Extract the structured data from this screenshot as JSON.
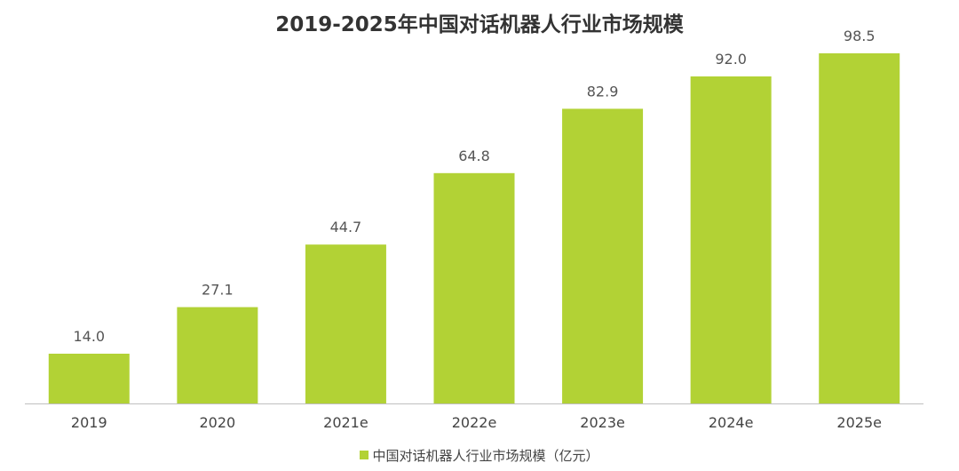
{
  "chart_data": {
    "type": "bar",
    "title": "2019-2025年中国对话机器人行业市场规模",
    "categories": [
      "2019",
      "2020",
      "2021e",
      "2022e",
      "2023e",
      "2024e",
      "2025e"
    ],
    "series": [
      {
        "name": "中国对话机器人行业市场规模（亿元）",
        "values": [
          14.0,
          27.1,
          44.7,
          64.8,
          82.9,
          92.0,
          98.5
        ],
        "labels": [
          "14.0",
          "27.1",
          "44.7",
          "64.8",
          "82.9",
          "92.0",
          "98.5"
        ]
      }
    ],
    "ylim": [
      0,
      100
    ],
    "grid": false,
    "legend_position": "bottom",
    "colors": {
      "bar": "#b2d235",
      "axis": "#bfbfbf"
    }
  }
}
